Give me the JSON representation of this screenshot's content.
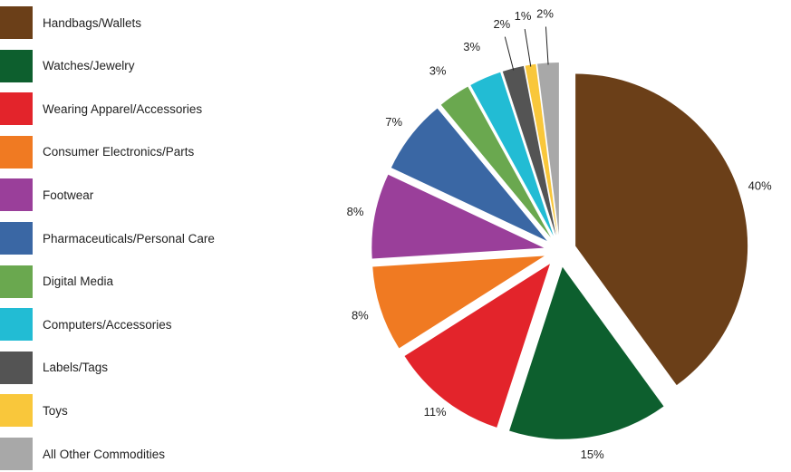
{
  "chart_data": {
    "type": "pie",
    "title": "",
    "legend_position": "left",
    "exploded": true,
    "slices": [
      {
        "label": "Handbags/Wallets",
        "value": 40,
        "display": "40%",
        "color": "#6b3f18"
      },
      {
        "label": "Watches/Jewelry",
        "value": 15,
        "display": "15%",
        "color": "#0d5f2e"
      },
      {
        "label": "Wearing Apparel/Accessories",
        "value": 11,
        "display": "11%",
        "color": "#e3242b"
      },
      {
        "label": "Consumer Electronics/Parts",
        "value": 8,
        "display": "8%",
        "color": "#f07a22"
      },
      {
        "label": "Footwear",
        "value": 8,
        "display": "8%",
        "color": "#9a3f9a"
      },
      {
        "label": "Pharmaceuticals/Personal Care",
        "value": 7,
        "display": "7%",
        "color": "#3a67a4"
      },
      {
        "label": "Digital Media",
        "value": 3,
        "display": "3%",
        "color": "#6aa84f"
      },
      {
        "label": "Computers/Accessories",
        "value": 3,
        "display": "3%",
        "color": "#22bcd4"
      },
      {
        "label": "Labels/Tags",
        "value": 2,
        "display": "2%",
        "color": "#545454"
      },
      {
        "label": "Toys",
        "value": 1,
        "display": "1%",
        "color": "#f9c73b"
      },
      {
        "label": "All Other Commodities",
        "value": 2,
        "display": "2%",
        "color": "#a8a8a8"
      }
    ]
  }
}
